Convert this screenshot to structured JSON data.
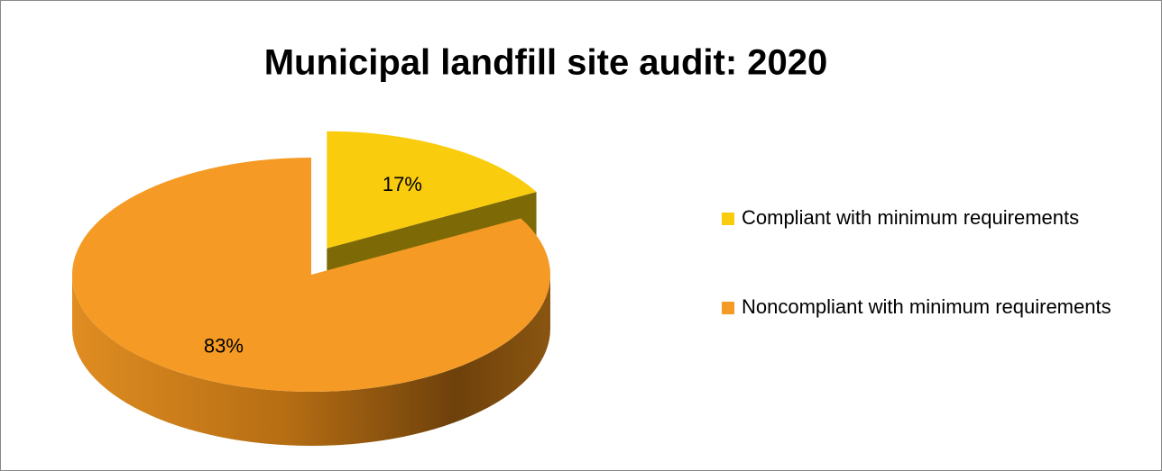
{
  "chart_data": {
    "type": "pie",
    "title": "Municipal landfill site audit: 2020",
    "categories": [
      "Compliant with minimum requirements",
      "Noncompliant with minimum requirements"
    ],
    "values": [
      17,
      83
    ],
    "value_labels": [
      "17%",
      "83%"
    ],
    "colors": [
      "#f9cc0e",
      "#f59b25"
    ],
    "exploded_slice": 0,
    "legend": "right"
  }
}
